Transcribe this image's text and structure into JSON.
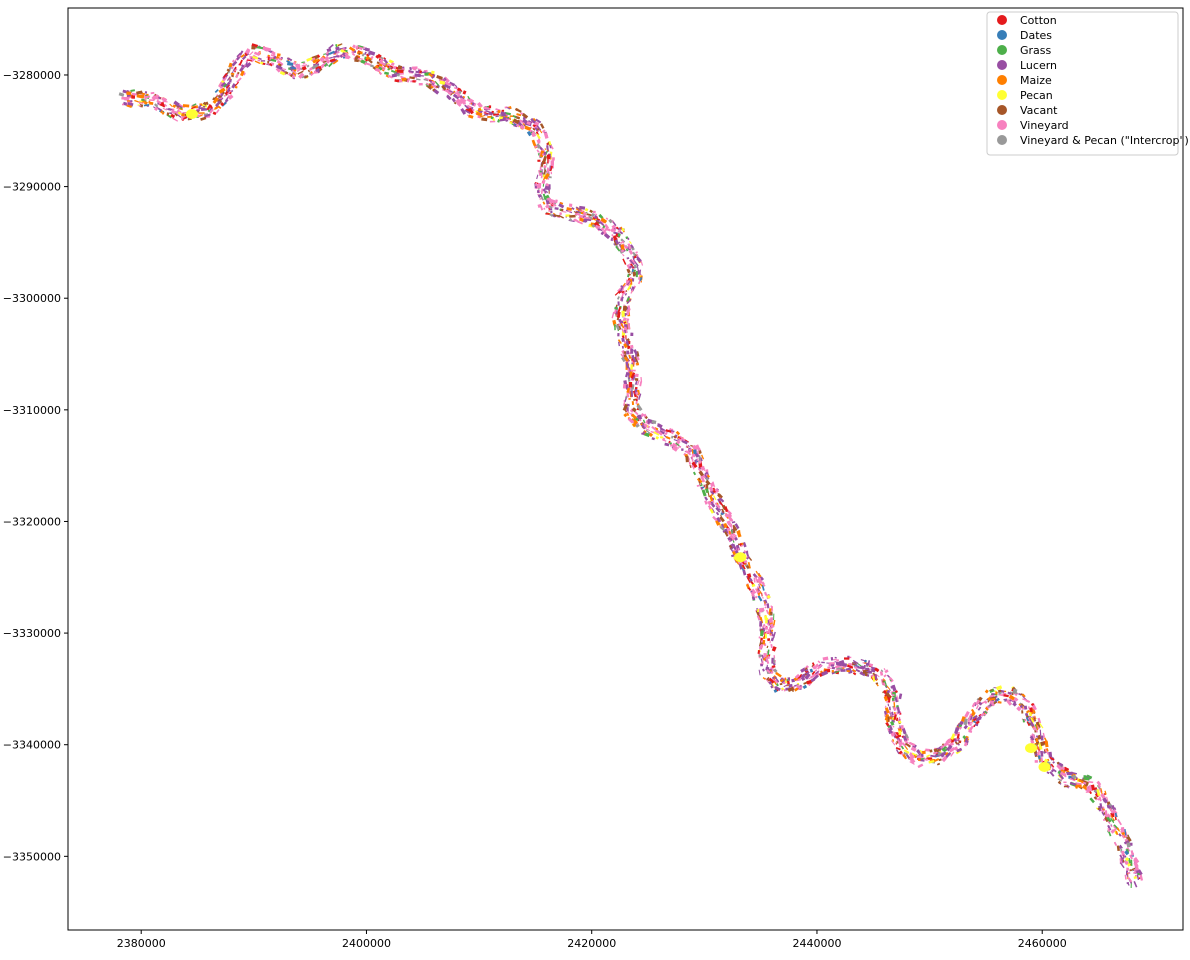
{
  "chart_data": {
    "type": "scatter",
    "title": "",
    "xlabel": "",
    "ylabel": "",
    "xlim": [
      2373500,
      2472500
    ],
    "ylim": [
      -3356600,
      -3274000
    ],
    "x_ticks": [
      2380000,
      2400000,
      2420000,
      2440000,
      2460000
    ],
    "x_tick_labels": [
      "2380000",
      "2400000",
      "2420000",
      "2440000",
      "2460000"
    ],
    "y_ticks": [
      -3280000,
      -3290000,
      -3300000,
      -3310000,
      -3320000,
      -3330000,
      -3340000,
      -3350000
    ],
    "y_tick_labels": [
      "−3280000",
      "−3290000",
      "−3300000",
      "−3310000",
      "−3320000",
      "−3330000",
      "−3340000",
      "−3350000"
    ],
    "grid": false,
    "legend_position": "top-right",
    "categories": [
      {
        "name": "Cotton",
        "color": "#e41a1c"
      },
      {
        "name": "Dates",
        "color": "#377eb8"
      },
      {
        "name": "Grass",
        "color": "#4daf4a"
      },
      {
        "name": "Lucern",
        "color": "#984ea3"
      },
      {
        "name": "Maize",
        "color": "#ff7f00"
      },
      {
        "name": "Pecan",
        "color": "#ffff33"
      },
      {
        "name": "Vacant",
        "color": "#a65628"
      },
      {
        "name": "Vineyard",
        "color": "#f781bf"
      },
      {
        "name": "Vineyard & Pecan (\"Intercrop\")",
        "color": "#999999"
      }
    ],
    "river_path": [
      [
        2378200,
        -3282000
      ],
      [
        2381000,
        -3282300
      ],
      [
        2383500,
        -3283500
      ],
      [
        2386000,
        -3283200
      ],
      [
        2387500,
        -3281500
      ],
      [
        2388700,
        -3279200
      ],
      [
        2389700,
        -3278000
      ],
      [
        2391500,
        -3278500
      ],
      [
        2394000,
        -3279800
      ],
      [
        2396000,
        -3278800
      ],
      [
        2398000,
        -3277600
      ],
      [
        2400000,
        -3278300
      ],
      [
        2402500,
        -3279800
      ],
      [
        2405500,
        -3280200
      ],
      [
        2407500,
        -3281500
      ],
      [
        2410000,
        -3283500
      ],
      [
        2413000,
        -3283600
      ],
      [
        2415000,
        -3284800
      ],
      [
        2416000,
        -3287000
      ],
      [
        2415800,
        -3289000
      ],
      [
        2415500,
        -3290500
      ],
      [
        2416200,
        -3291800
      ],
      [
        2418000,
        -3292300
      ],
      [
        2420500,
        -3293000
      ],
      [
        2422500,
        -3294500
      ],
      [
        2424000,
        -3297500
      ],
      [
        2423600,
        -3298800
      ],
      [
        2422800,
        -3300000
      ],
      [
        2422500,
        -3302000
      ],
      [
        2423200,
        -3304500
      ],
      [
        2423800,
        -3306500
      ],
      [
        2423600,
        -3308200
      ],
      [
        2423500,
        -3310000
      ],
      [
        2424700,
        -3311500
      ],
      [
        2427000,
        -3312500
      ],
      [
        2428800,
        -3313500
      ],
      [
        2429800,
        -3316000
      ],
      [
        2431000,
        -3318500
      ],
      [
        2432200,
        -3320500
      ],
      [
        2433000,
        -3322500
      ],
      [
        2434300,
        -3325000
      ],
      [
        2435200,
        -3327200
      ],
      [
        2435600,
        -3329500
      ],
      [
        2435500,
        -3331500
      ],
      [
        2435600,
        -3333500
      ],
      [
        2436800,
        -3334800
      ],
      [
        2438500,
        -3334300
      ],
      [
        2440500,
        -3333000
      ],
      [
        2443000,
        -3332800
      ],
      [
        2445500,
        -3333500
      ],
      [
        2446700,
        -3335500
      ],
      [
        2446800,
        -3338000
      ],
      [
        2447500,
        -3340000
      ],
      [
        2449000,
        -3341300
      ],
      [
        2451000,
        -3341000
      ],
      [
        2452500,
        -3339800
      ],
      [
        2453800,
        -3337500
      ],
      [
        2455500,
        -3335600
      ],
      [
        2457000,
        -3335500
      ],
      [
        2458500,
        -3336500
      ],
      [
        2459500,
        -3339000
      ],
      [
        2460200,
        -3341500
      ],
      [
        2462000,
        -3343000
      ],
      [
        2464500,
        -3343700
      ],
      [
        2465800,
        -3346000
      ],
      [
        2467200,
        -3349000
      ],
      [
        2468000,
        -3351500
      ],
      [
        2468300,
        -3352500
      ]
    ],
    "pecan_patches": [
      {
        "x": 2384500,
        "y": -3283500
      },
      {
        "x": 2433200,
        "y": -3323200
      },
      {
        "x": 2459000,
        "y": -3340300
      },
      {
        "x": 2460200,
        "y": -3342000
      }
    ]
  }
}
